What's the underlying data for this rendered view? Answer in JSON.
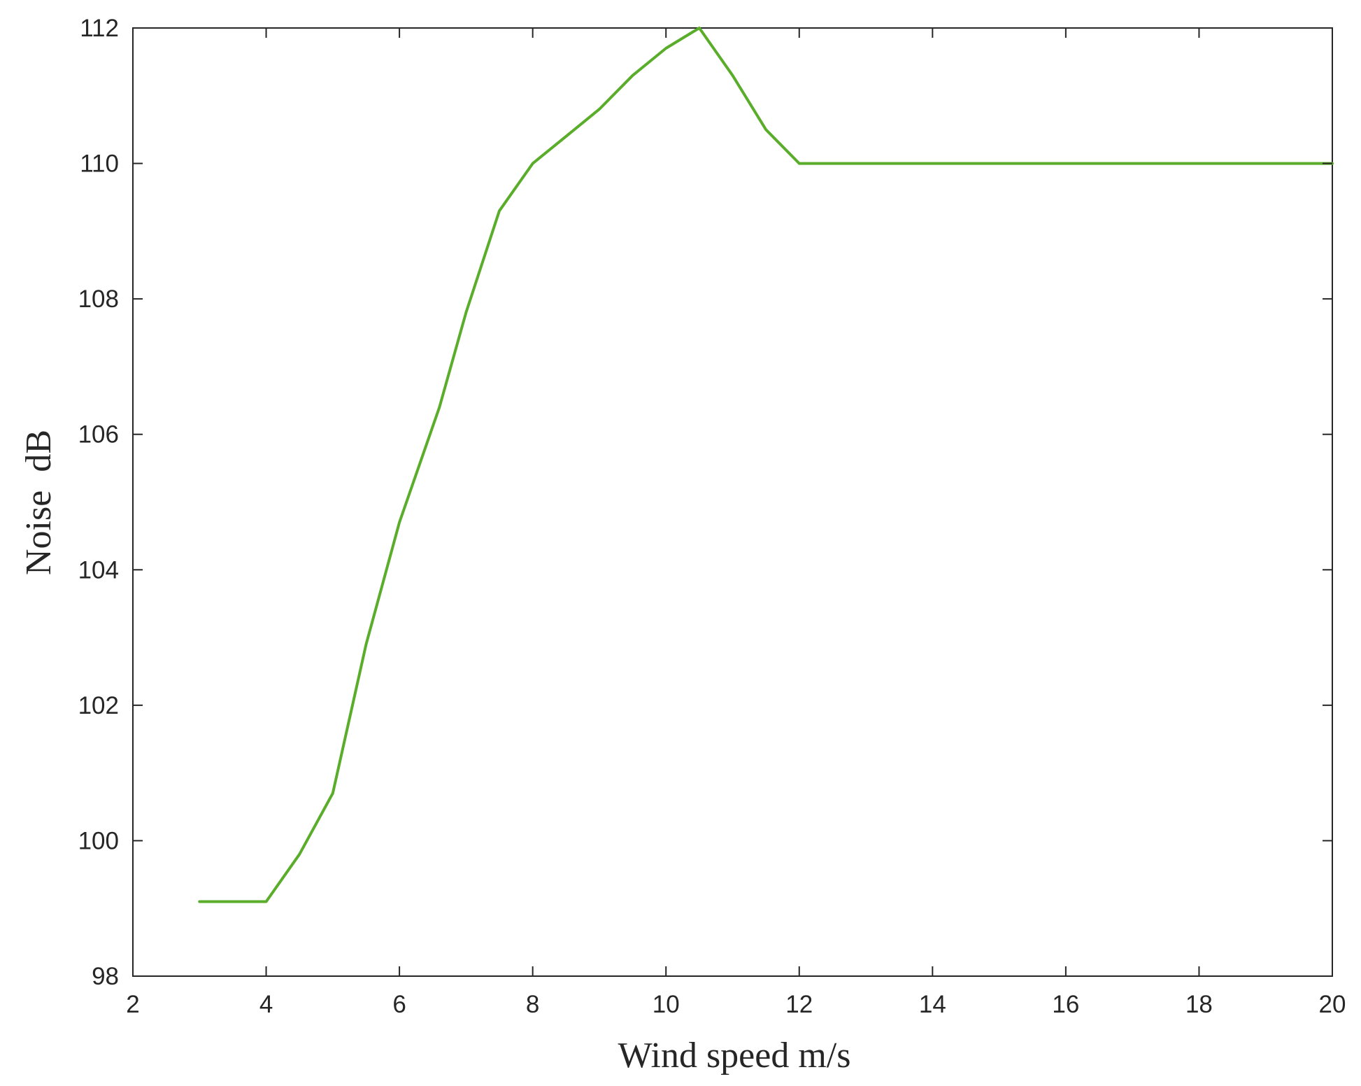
{
  "chart_data": {
    "type": "line",
    "title": "",
    "xlabel": "Wind speed m/s",
    "ylabel": "Noise  dB",
    "xlim": [
      2,
      20
    ],
    "ylim": [
      98,
      112
    ],
    "xticks": [
      2,
      4,
      6,
      8,
      10,
      12,
      14,
      16,
      18,
      20
    ],
    "yticks": [
      98,
      100,
      102,
      104,
      106,
      108,
      110,
      112
    ],
    "grid": false,
    "legend": "none",
    "series": [
      {
        "color": "#5aad2a",
        "x": [
          3,
          4,
          4.5,
          5,
          5.5,
          6,
          6.6,
          7,
          7.5,
          8,
          8.5,
          9,
          9.5,
          10,
          10.5,
          11,
          11.5,
          12,
          13,
          14,
          15,
          16,
          17,
          18,
          19,
          20
        ],
        "y": [
          99.1,
          99.1,
          99.8,
          100.7,
          102.9,
          104.7,
          106.4,
          107.8,
          109.3,
          110,
          110.4,
          110.8,
          111.3,
          111.7,
          112,
          111.3,
          110.5,
          110,
          110,
          110,
          110,
          110,
          110,
          110,
          110,
          110
        ]
      }
    ]
  }
}
